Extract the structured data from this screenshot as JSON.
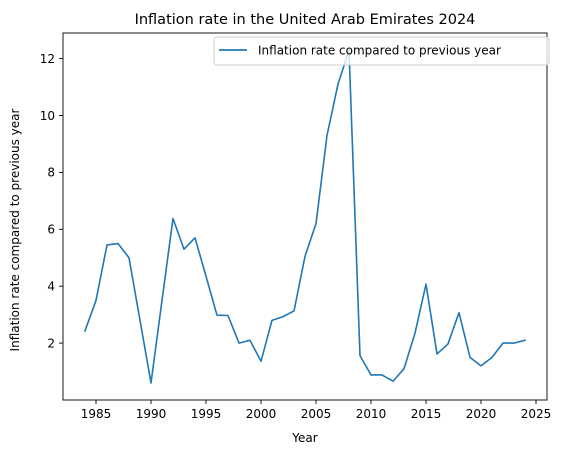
{
  "chart_data": {
    "type": "line",
    "title": "Inflation rate in the United Arab Emirates 2024",
    "xlabel": "Year",
    "ylabel": "Inflation rate compared to previous year",
    "xlim": [
      1982,
      2026
    ],
    "ylim": [
      0.0,
      12.9
    ],
    "xticks": [
      1985,
      1990,
      1995,
      2000,
      2005,
      2010,
      2015,
      2020,
      2025
    ],
    "yticks": [
      2,
      4,
      6,
      8,
      10,
      12
    ],
    "grid": false,
    "legend_position": "top-right",
    "series": [
      {
        "name": "Inflation rate compared to previous year",
        "color": "#1f77b4",
        "x": [
          1984,
          1985,
          1986,
          1987,
          1988,
          1989,
          1990,
          1991,
          1992,
          1993,
          1994,
          1995,
          1996,
          1997,
          1998,
          1999,
          2000,
          2001,
          2002,
          2003,
          2004,
          2005,
          2006,
          2007,
          2008,
          2009,
          2010,
          2011,
          2012,
          2013,
          2014,
          2015,
          2016,
          2017,
          2018,
          2019,
          2020,
          2021,
          2022,
          2023,
          2024
        ],
        "values": [
          2.43,
          3.5,
          5.45,
          5.5,
          5.0,
          2.8,
          0.6,
          3.5,
          6.38,
          5.3,
          5.7,
          4.35,
          2.98,
          2.97,
          2.0,
          2.1,
          1.36,
          2.8,
          2.93,
          3.13,
          5.05,
          6.2,
          9.3,
          11.1,
          12.3,
          1.56,
          0.88,
          0.88,
          0.66,
          1.1,
          2.35,
          4.07,
          1.62,
          1.97,
          3.07,
          1.5,
          1.2,
          1.5,
          2.0,
          2.0,
          2.1
        ]
      }
    ]
  }
}
